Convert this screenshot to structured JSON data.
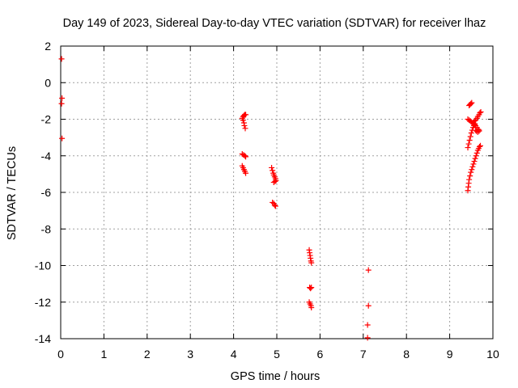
{
  "chart_data": {
    "type": "scatter",
    "title": "Day 149 of 2023, Sidereal Day-to-day VTEC variation (SDTVAR) for receiver lhaz",
    "xlabel": "GPS time / hours",
    "ylabel": "SDTVAR / TECUs",
    "xlim": [
      0,
      10
    ],
    "ylim": [
      -14,
      2
    ],
    "xticks": [
      0,
      1,
      2,
      3,
      4,
      5,
      6,
      7,
      8,
      9,
      10
    ],
    "yticks": [
      -14,
      -12,
      -10,
      -8,
      -6,
      -4,
      -2,
      0,
      2
    ],
    "grid": true,
    "marker": "plus",
    "marker_color": "#ff0000",
    "series": [
      {
        "name": "SDTVAR",
        "points": [
          [
            0.02,
            1.3
          ],
          [
            0.03,
            -0.85
          ],
          [
            0.02,
            -1.15
          ],
          [
            0.03,
            -3.05
          ],
          [
            4.2,
            -1.95
          ],
          [
            4.22,
            -2.05
          ],
          [
            4.24,
            -2.2
          ],
          [
            4.25,
            -2.35
          ],
          [
            4.27,
            -2.5
          ],
          [
            4.22,
            -1.85
          ],
          [
            4.24,
            -1.8
          ],
          [
            4.26,
            -1.75
          ],
          [
            4.28,
            -1.75
          ],
          [
            4.2,
            -3.9
          ],
          [
            4.23,
            -3.95
          ],
          [
            4.26,
            -4.0
          ],
          [
            4.28,
            -4.05
          ],
          [
            4.2,
            -4.55
          ],
          [
            4.22,
            -4.65
          ],
          [
            4.24,
            -4.75
          ],
          [
            4.26,
            -4.85
          ],
          [
            4.28,
            -4.95
          ],
          [
            4.88,
            -4.65
          ],
          [
            4.9,
            -4.8
          ],
          [
            4.92,
            -4.95
          ],
          [
            4.93,
            -5.05
          ],
          [
            4.95,
            -5.15
          ],
          [
            4.97,
            -5.25
          ],
          [
            4.98,
            -5.35
          ],
          [
            4.93,
            -5.45
          ],
          [
            4.96,
            -5.4
          ],
          [
            4.9,
            -6.55
          ],
          [
            4.93,
            -6.6
          ],
          [
            4.95,
            -6.7
          ],
          [
            4.97,
            -6.75
          ],
          [
            5.75,
            -9.15
          ],
          [
            5.76,
            -9.3
          ],
          [
            5.77,
            -9.45
          ],
          [
            5.78,
            -9.6
          ],
          [
            5.79,
            -9.75
          ],
          [
            5.8,
            -9.85
          ],
          [
            5.76,
            -11.2
          ],
          [
            5.78,
            -11.25
          ],
          [
            5.8,
            -11.2
          ],
          [
            5.75,
            -12.0
          ],
          [
            5.77,
            -12.1
          ],
          [
            5.79,
            -12.2
          ],
          [
            5.8,
            -12.3
          ],
          [
            7.12,
            -10.25
          ],
          [
            7.12,
            -12.2
          ],
          [
            7.1,
            -13.25
          ],
          [
            7.1,
            -13.95
          ],
          [
            9.45,
            -1.25
          ],
          [
            9.47,
            -1.2
          ],
          [
            9.49,
            -1.15
          ],
          [
            9.51,
            -1.1
          ],
          [
            9.42,
            -2.0
          ],
          [
            9.45,
            -2.05
          ],
          [
            9.48,
            -2.1
          ],
          [
            9.5,
            -2.15
          ],
          [
            9.53,
            -2.2
          ],
          [
            9.56,
            -2.25
          ],
          [
            9.58,
            -2.3
          ],
          [
            9.6,
            -2.35
          ],
          [
            9.63,
            -2.45
          ],
          [
            9.66,
            -2.55
          ],
          [
            9.68,
            -2.65
          ],
          [
            9.57,
            -2.1
          ],
          [
            9.6,
            -2.05
          ],
          [
            9.63,
            -1.95
          ],
          [
            9.65,
            -1.85
          ],
          [
            9.68,
            -1.75
          ],
          [
            9.7,
            -1.65
          ],
          [
            9.72,
            -1.6
          ],
          [
            9.42,
            -3.55
          ],
          [
            9.44,
            -3.35
          ],
          [
            9.46,
            -3.15
          ],
          [
            9.48,
            -2.95
          ],
          [
            9.5,
            -2.75
          ],
          [
            9.52,
            -2.6
          ],
          [
            9.54,
            -2.45
          ],
          [
            9.56,
            -2.35
          ],
          [
            9.58,
            -2.25
          ],
          [
            9.6,
            -2.6
          ],
          [
            9.62,
            -2.65
          ],
          [
            9.65,
            -2.7
          ],
          [
            9.68,
            -2.6
          ],
          [
            9.42,
            -5.9
          ],
          [
            9.43,
            -5.7
          ],
          [
            9.44,
            -5.5
          ],
          [
            9.45,
            -5.3
          ],
          [
            9.47,
            -5.1
          ],
          [
            9.49,
            -4.9
          ],
          [
            9.51,
            -4.75
          ],
          [
            9.53,
            -4.6
          ],
          [
            9.55,
            -4.45
          ],
          [
            9.57,
            -4.3
          ],
          [
            9.59,
            -4.15
          ],
          [
            9.61,
            -4.0
          ],
          [
            9.63,
            -3.85
          ],
          [
            9.65,
            -3.7
          ],
          [
            9.67,
            -3.6
          ],
          [
            9.69,
            -3.5
          ],
          [
            9.71,
            -3.45
          ]
        ]
      }
    ]
  }
}
